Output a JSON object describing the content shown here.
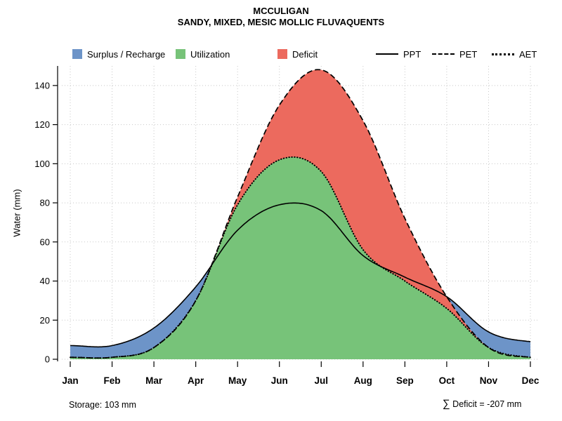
{
  "title": "MCCULIGAN",
  "subtitle": "SANDY, MIXED, MESIC MOLLIC FLUVAQUENTS",
  "legend": {
    "areas": [
      {
        "label": "Surplus / Recharge"
      },
      {
        "label": "Utilization"
      },
      {
        "label": "Deficit"
      }
    ],
    "lines": [
      {
        "label": "PPT",
        "style": "solid"
      },
      {
        "label": "PET",
        "style": "dashed"
      },
      {
        "label": "AET",
        "style": "dotted"
      }
    ]
  },
  "footer": {
    "storage_label": "Storage: 103 mm",
    "sigma": "∑",
    "deficit_label": " Deficit = -207 mm"
  },
  "chart_data": {
    "type": "area",
    "title": "MCCULIGAN",
    "subtitle": "SANDY, MIXED, MESIC MOLLIC FLUVAQUENTS",
    "x": [
      "Jan",
      "Feb",
      "Mar",
      "Apr",
      "May",
      "Jun",
      "Jul",
      "Aug",
      "Sep",
      "Oct",
      "Nov",
      "Dec"
    ],
    "xlabel": "",
    "ylabel": "Water (mm)",
    "ylim": [
      0,
      150
    ],
    "yticks": [
      0,
      20,
      40,
      60,
      80,
      100,
      120,
      140
    ],
    "grid": "dotted",
    "series": [
      {
        "name": "PPT",
        "style": "solid",
        "values": [
          7,
          7,
          16,
          37,
          66,
          79,
          76,
          53,
          42,
          32,
          14,
          9
        ]
      },
      {
        "name": "PET",
        "style": "dashed",
        "values": [
          1,
          1,
          6,
          30,
          83,
          130,
          148,
          122,
          72,
          32,
          6,
          1
        ]
      },
      {
        "name": "AET",
        "style": "dotted",
        "values": [
          1,
          1,
          6,
          30,
          79,
          102,
          96,
          56,
          40,
          26,
          6,
          1
        ]
      }
    ],
    "areas": [
      {
        "name": "Surplus / Recharge",
        "color": "#6d94c8",
        "between": [
          "PPT",
          "PET"
        ],
        "where": "PPT>PET"
      },
      {
        "name": "Utilization",
        "color": "#77c379",
        "between": [
          "AET",
          "baseline"
        ]
      },
      {
        "name": "Deficit",
        "color": "#ec6a5e",
        "between": [
          "PET",
          "AET"
        ]
      }
    ],
    "annotations": {
      "storage_mm": 103,
      "sum_deficit_mm": -207
    }
  }
}
